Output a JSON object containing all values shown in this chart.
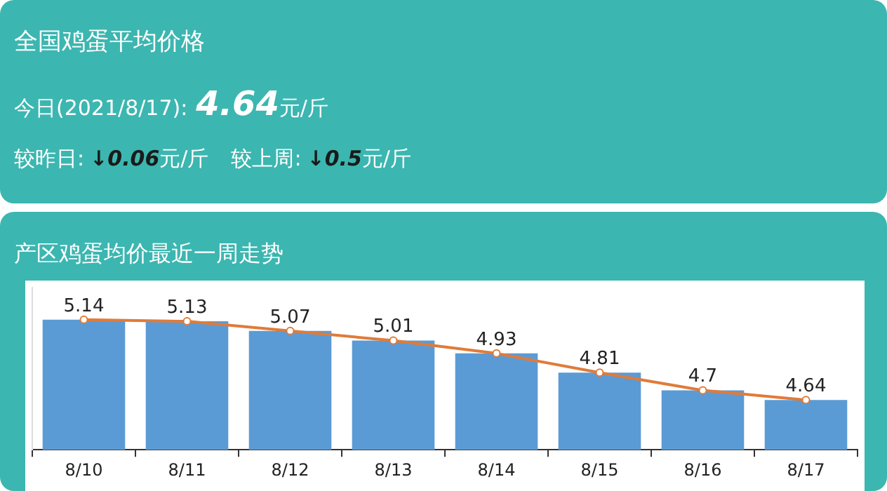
{
  "chart_data": [
    {
      "type": "other",
      "title": "全国鸡蛋平均价格",
      "annotations": [
        "今日(2021/8/17):",
        "4.64",
        "元/斤",
        "较昨日:",
        "↓0.06",
        "元/斤",
        "较上周:",
        "↓0.5",
        "元/斤"
      ]
    },
    {
      "type": "bar",
      "title": "产区鸡蛋均价最近一周走势",
      "categories": [
        "8/10",
        "8/11",
        "8/12",
        "8/13",
        "8/14",
        "8/15",
        "8/16",
        "8/17"
      ],
      "series": [
        {
          "type": "bar",
          "color": "#5b9bd5",
          "values": [
            5.14,
            5.13,
            5.07,
            5.01,
            4.93,
            4.81,
            4.7,
            4.64
          ],
          "value_labels": [
            "5.14",
            "5.13",
            "5.07",
            "5.01",
            "4.93",
            "4.81",
            "4.7",
            "4.64"
          ]
        },
        {
          "type": "line",
          "color": "#e07b39",
          "marker": "circle",
          "values": [
            5.14,
            5.13,
            5.07,
            5.01,
            4.93,
            4.81,
            4.7,
            4.64
          ]
        }
      ],
      "ylim": [
        4.33,
        5.34
      ],
      "tick_labels": "x",
      "grid": false,
      "legend": false
    }
  ]
}
